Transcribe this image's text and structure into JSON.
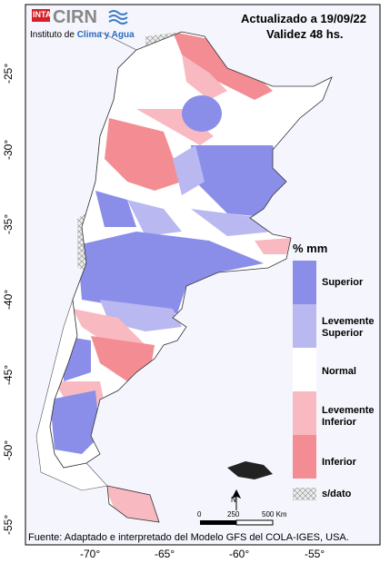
{
  "logo": {
    "badge": "INTA",
    "name": "CIRN",
    "subtitle_prefix": "Instituto de",
    "subtitle_highlight": "Clima y Agua"
  },
  "header": {
    "updated": "Actualizado a 19/09/22",
    "validity": "Validez 48 hs."
  },
  "axes": {
    "lat_labels": [
      "-25°",
      "-30°",
      "-35°",
      "-40°",
      "-45°",
      "-50°",
      "-55°"
    ],
    "lon_labels": [
      "-70°",
      "-65°",
      "-60°",
      "-55°"
    ]
  },
  "legend": {
    "title": "% mm",
    "items": [
      "Superior",
      "Levemente Superior",
      "Normal",
      "Levemente Inferior",
      "Inferior",
      "s/dato"
    ]
  },
  "scale": {
    "north": "N",
    "labels": [
      "0",
      "250",
      "500 Km"
    ]
  },
  "footer": "Fuente: Adaptado e interpretado del Modelo GFS del COLA-IGES, USA."
}
